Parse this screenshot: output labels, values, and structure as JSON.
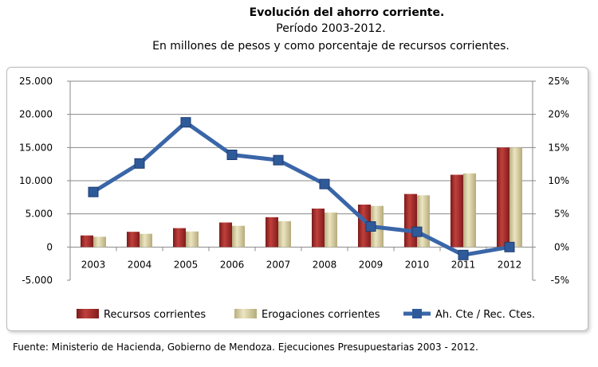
{
  "chart_data": {
    "type": "bar",
    "title": "Evolución del ahorro corriente.",
    "subtitle": "Período 2003-2012.",
    "subtitle2": "En millones de pesos y como porcentaje de recursos corrientes.",
    "categories": [
      "2003",
      "2004",
      "2005",
      "2006",
      "2007",
      "2008",
      "2009",
      "2010",
      "2011",
      "2012"
    ],
    "series": [
      {
        "name": "Recursos corrientes",
        "type": "bar",
        "axis": "left",
        "color": "#a52a2a",
        "values": [
          1750,
          2300,
          2850,
          3700,
          4500,
          5800,
          6400,
          8000,
          10900,
          15000
        ]
      },
      {
        "name": "Erogaciones corrientes",
        "type": "bar",
        "axis": "left",
        "color": "#d8cfa0",
        "values": [
          1550,
          2000,
          2350,
          3200,
          3900,
          5200,
          6200,
          7800,
          11100,
          15000
        ]
      },
      {
        "name": "Ah. Cte / Rec. Ctes.",
        "type": "line",
        "axis": "right",
        "color": "#3a66a8",
        "values": [
          8.3,
          12.6,
          18.8,
          13.9,
          13.1,
          9.5,
          3.1,
          2.3,
          -1.2,
          0.0
        ]
      }
    ],
    "ylim": [
      -5000,
      25000
    ],
    "y2lim": [
      -5,
      25
    ],
    "yticks": [
      "-5.000",
      "0",
      "5.000",
      "10.000",
      "15.000",
      "20.000",
      "25.000"
    ],
    "y2ticks": [
      "-5%",
      "0%",
      "5%",
      "10%",
      "15%",
      "20%",
      "25%"
    ],
    "grid": true,
    "legend": "bottom"
  },
  "source": "Fuente: Ministerio de Hacienda, Gobierno de Mendoza. Ejecuciones Presupuestarias 2003 - 2012."
}
